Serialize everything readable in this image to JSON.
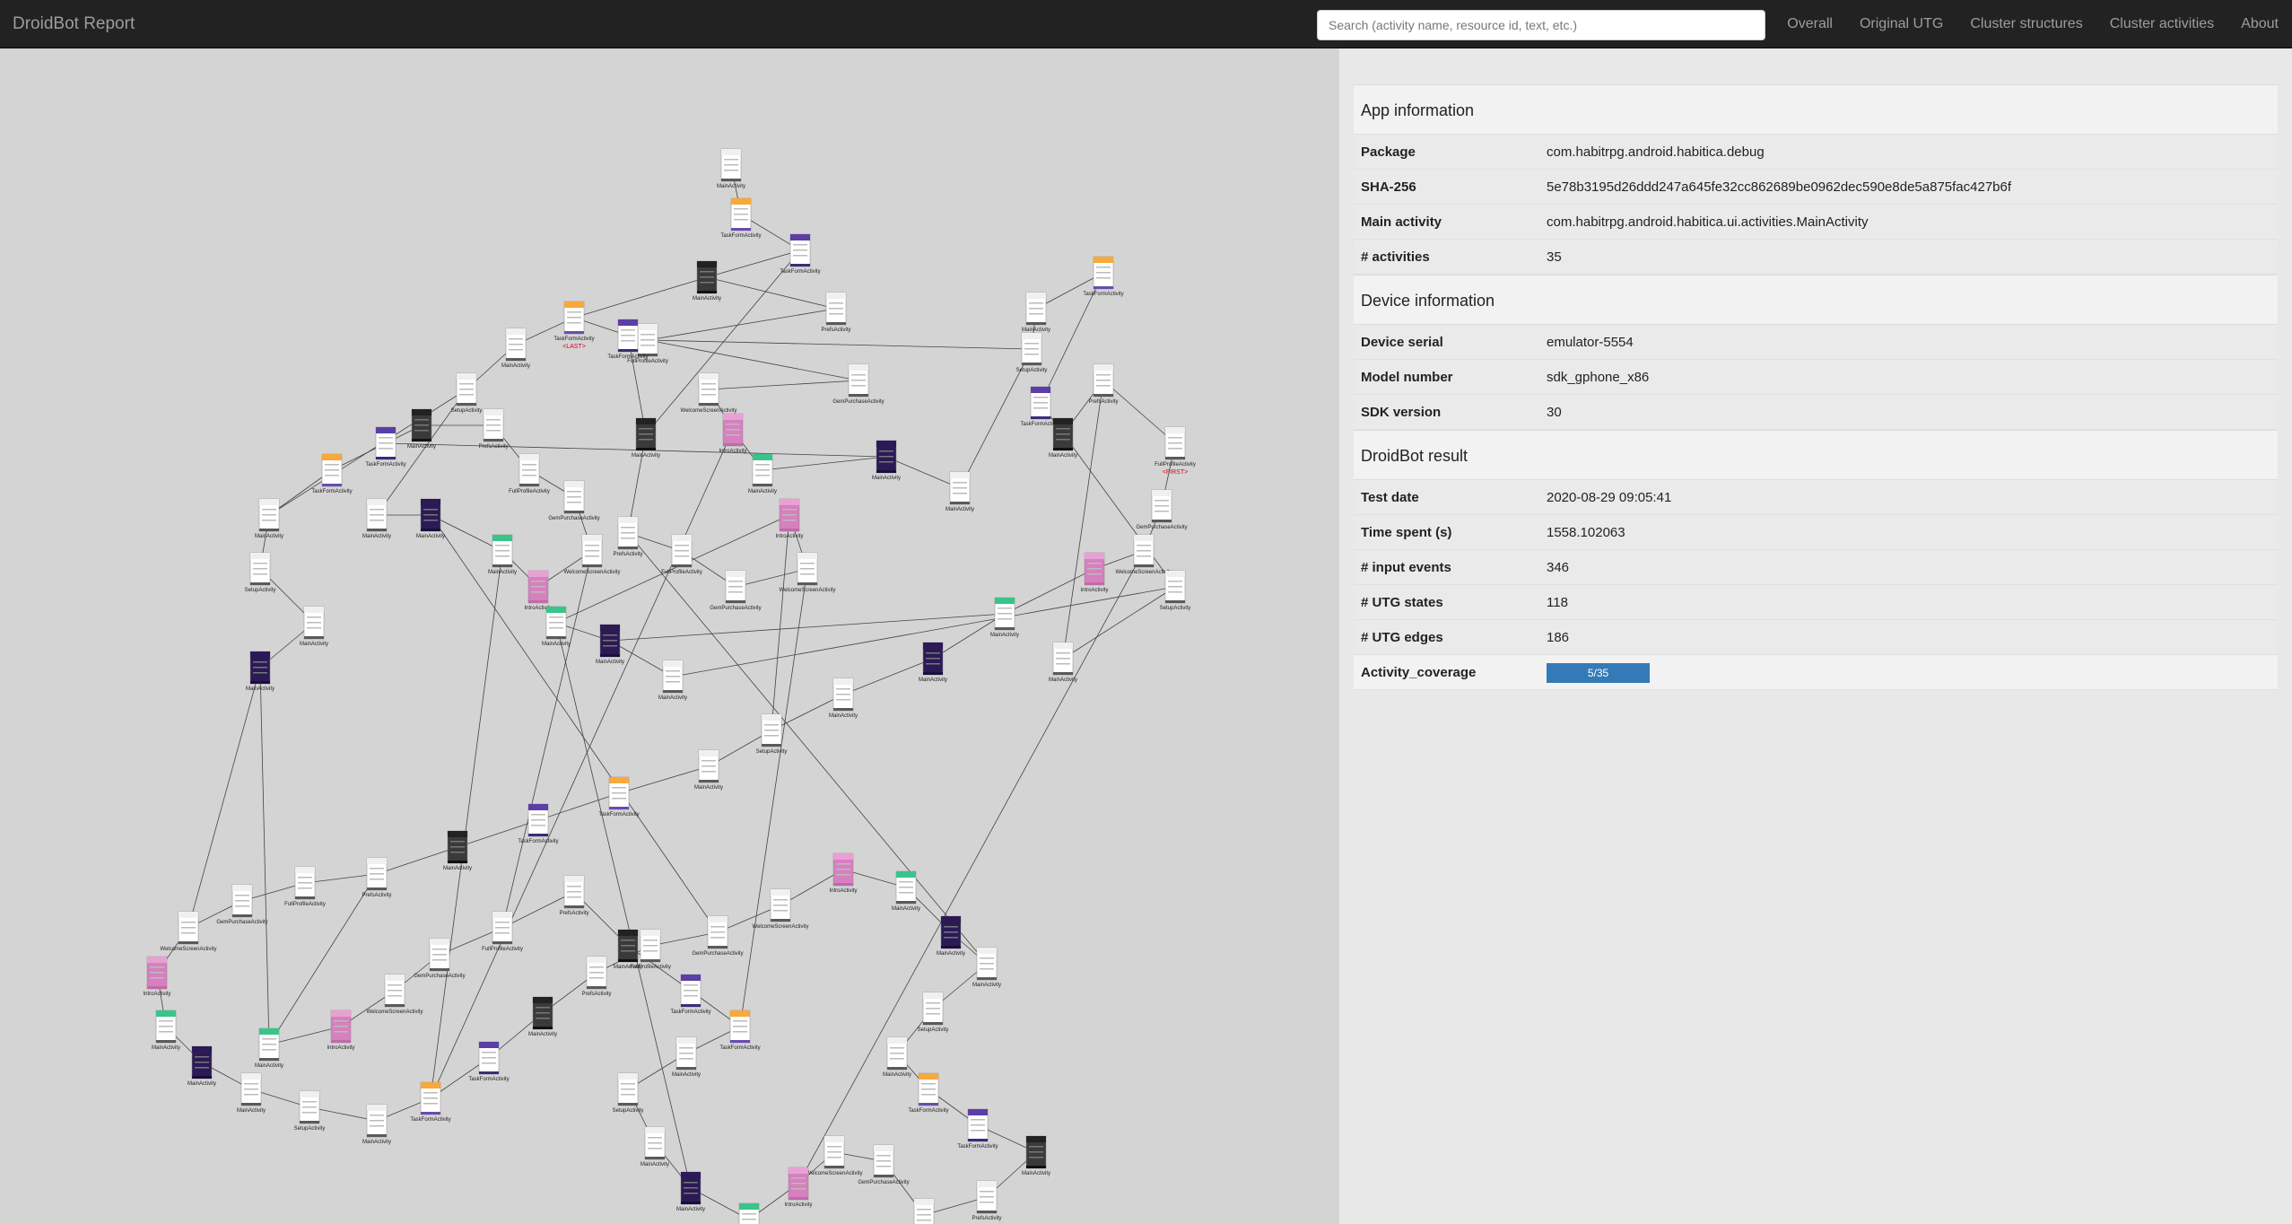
{
  "brand": "DroidBot Report",
  "search": {
    "placeholder": "Search (activity name, resource id, text, etc.)"
  },
  "nav": [
    "Overall",
    "Original UTG",
    "Cluster structures",
    "Cluster activities",
    "About"
  ],
  "app_info": {
    "title": "App information",
    "rows": [
      {
        "key": "Package",
        "value": "com.habitrpg.android.habitica.debug"
      },
      {
        "key": "SHA-256",
        "value": "5e78b3195d26ddd247a645fe32cc862689be0962dec590e8de5a875fac427b6f"
      },
      {
        "key": "Main activity",
        "value": "com.habitrpg.android.habitica.ui.activities.MainActivity"
      },
      {
        "key": "# activities",
        "value": "35"
      }
    ]
  },
  "device_info": {
    "title": "Device information",
    "rows": [
      {
        "key": "Device serial",
        "value": "emulator-5554"
      },
      {
        "key": "Model number",
        "value": "sdk_gphone_x86"
      },
      {
        "key": "SDK version",
        "value": "30"
      }
    ]
  },
  "result": {
    "title": "DroidBot result",
    "rows": [
      {
        "key": "Test date",
        "value": "2020-08-29 09:05:41"
      },
      {
        "key": "Time spent (s)",
        "value": "1558.102063"
      },
      {
        "key": "# input events",
        "value": "346"
      },
      {
        "key": "# UTG states",
        "value": "118"
      },
      {
        "key": "# UTG edges",
        "value": "186"
      }
    ],
    "coverage_label": "Activity_coverage",
    "coverage_text": "5/35",
    "coverage_fraction": 0.1429
  },
  "graph": {
    "nodes": [
      {
        "label": "MainActivity",
        "style": "white"
      },
      {
        "label": "TaskFormActivity",
        "style": "orange"
      },
      {
        "label": "TaskFormActivity",
        "style": "purple"
      },
      {
        "label": "MainActivity",
        "style": "dark"
      },
      {
        "label": "PrefsActivity",
        "style": "white"
      },
      {
        "label": "FullProfileActivity",
        "style": "white"
      },
      {
        "label": "GemPurchaseActivity",
        "style": "white"
      },
      {
        "label": "WelcomeScreenActivity",
        "style": "white"
      },
      {
        "label": "IntroActivity",
        "style": "pink"
      },
      {
        "label": "MainActivity",
        "style": "green"
      },
      {
        "label": "MainActivity",
        "style": "deep"
      },
      {
        "label": "MainActivity",
        "style": "white"
      },
      {
        "label": "SetupActivity",
        "style": "white"
      }
    ],
    "first_label": "<FIRST>",
    "last_label": "<LAST>"
  }
}
